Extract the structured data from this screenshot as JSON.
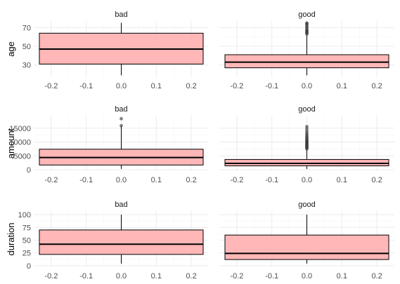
{
  "chart_data": {
    "type": "boxplot",
    "x_ticks": [
      "-0.2",
      "-0.1",
      "0.0",
      "0.1",
      "0.2"
    ],
    "x_range": [
      -0.25,
      0.25
    ],
    "box_fill": "#ffb3b3",
    "box_edge": "#000000",
    "grid_major": "#ebebeb",
    "grid_minor": "#f5f5f5",
    "rows": [
      {
        "ylabel": "age",
        "y_ticks": [
          30,
          50,
          70
        ],
        "panels": [
          {
            "title": "bad",
            "ylim": [
              17,
              77
            ],
            "q1": 31,
            "median": 47,
            "q3": 64,
            "whisker_low": 19,
            "whisker_high": 75,
            "outliers": []
          },
          {
            "title": "good",
            "ylim": [
              17,
              77
            ],
            "q1": 27,
            "median": 33,
            "q3": 41,
            "whisker_low": 19,
            "whisker_high": 62,
            "outliers": [
              63,
              64,
              65,
              66,
              67,
              68,
              70,
              71,
              73,
              74,
              75
            ]
          }
        ]
      },
      {
        "ylabel": "amount",
        "y_ticks": [
          0,
          5000,
          10000,
          15000
        ],
        "y_tick_labels": [
          "0",
          "5000",
          "10000",
          "15000"
        ],
        "panels": [
          {
            "title": "bad",
            "ylim": [
              -500,
              19500
            ],
            "q1": 1700,
            "median": 4400,
            "q3": 7400,
            "whisker_low": 300,
            "whisker_high": 15800,
            "outliers": [
              15900,
              18400
            ]
          },
          {
            "title": "good",
            "ylim": [
              -500,
              19500
            ],
            "q1": 1400,
            "median": 2300,
            "q3": 3700,
            "whisker_low": 300,
            "whisker_high": 7200,
            "outliers": [
              7500,
              7800,
              8100,
              8400,
              8700,
              9000,
              9300,
              9600,
              9900,
              10200,
              10500,
              10900,
              11300,
              11700,
              12200,
              12700,
              13300,
              14000,
              14800,
              15600
            ]
          }
        ]
      },
      {
        "ylabel": "duration",
        "y_ticks": [
          0,
          25,
          50,
          75,
          100
        ],
        "panels": [
          {
            "title": "bad",
            "ylim": [
              -3,
              107
            ],
            "q1": 22,
            "median": 42,
            "q3": 70,
            "whisker_low": 4,
            "whisker_high": 100,
            "outliers": []
          },
          {
            "title": "good",
            "ylim": [
              -3,
              107
            ],
            "q1": 12,
            "median": 24,
            "q3": 60,
            "whisker_low": 4,
            "whisker_high": 100,
            "outliers": []
          }
        ]
      }
    ]
  }
}
